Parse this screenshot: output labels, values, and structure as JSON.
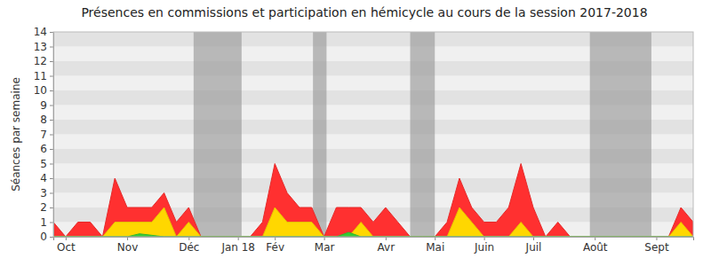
{
  "chart_data": {
    "type": "area",
    "title": "Présences en commissions et participation en hémicycle au cours de la session 2017-2018",
    "y_label": "Séances par semaine",
    "categories": [
      null,
      "Oct",
      null,
      null,
      null,
      null,
      "Nov",
      null,
      null,
      null,
      null,
      "Déc",
      null,
      null,
      null,
      "Jan 18",
      null,
      null,
      "Fév",
      null,
      null,
      null,
      "Mar",
      null,
      null,
      null,
      null,
      "Avr",
      null,
      null,
      null,
      "Mai",
      null,
      null,
      null,
      "Juin",
      null,
      null,
      null,
      "Juil",
      null,
      null,
      null,
      null,
      "Août",
      null,
      null,
      null,
      null,
      "Sept",
      null,
      null,
      null
    ],
    "series": [
      {
        "color": "#ff3030",
        "values": [
          1,
          0,
          1,
          1,
          0,
          4,
          2,
          2,
          2,
          3,
          1,
          2,
          0,
          0,
          0,
          0,
          0,
          1,
          5,
          3,
          2,
          2,
          0,
          2,
          2,
          2,
          1,
          2,
          1,
          0,
          0,
          0,
          1,
          4,
          2,
          1,
          1,
          2,
          5,
          2,
          0,
          1,
          0,
          0,
          0,
          0,
          0,
          0,
          0,
          0,
          0,
          2,
          1
        ]
      },
      {
        "color": "#ffd700",
        "values": [
          0,
          0,
          0,
          0,
          0,
          1,
          1,
          1,
          1,
          2,
          0,
          1,
          0,
          0,
          0,
          0,
          0,
          0,
          2,
          1,
          1,
          1,
          0,
          0,
          0,
          1,
          0,
          0,
          0,
          0,
          0,
          0,
          0,
          2,
          1,
          0,
          0,
          0,
          1,
          0,
          0,
          0,
          0,
          0,
          0,
          0,
          0,
          0,
          0,
          0,
          0,
          1,
          0
        ]
      },
      {
        "color": "#33cc33",
        "values": [
          0,
          0,
          0,
          0,
          0,
          0,
          0,
          0.2,
          0.1,
          0,
          0,
          0,
          0,
          0,
          0,
          0,
          0,
          0,
          0,
          0,
          0,
          0,
          0,
          0,
          0.3,
          0,
          0,
          0,
          0,
          0,
          0,
          0,
          0,
          0,
          0,
          0,
          0,
          0,
          0,
          0,
          0,
          0,
          0,
          0,
          0,
          0,
          0,
          0,
          0,
          0,
          0,
          0,
          0
        ]
      }
    ],
    "ylim": [
      0,
      14
    ],
    "yticks": [
      0,
      1,
      2,
      3,
      4,
      5,
      6,
      7,
      8,
      9,
      10,
      11,
      12,
      13,
      14
    ],
    "grid": true,
    "shaded_ranges": [
      [
        11.4,
        15.3
      ],
      [
        21.1,
        22.2
      ],
      [
        29,
        31
      ],
      [
        43.6,
        48.6
      ]
    ]
  }
}
